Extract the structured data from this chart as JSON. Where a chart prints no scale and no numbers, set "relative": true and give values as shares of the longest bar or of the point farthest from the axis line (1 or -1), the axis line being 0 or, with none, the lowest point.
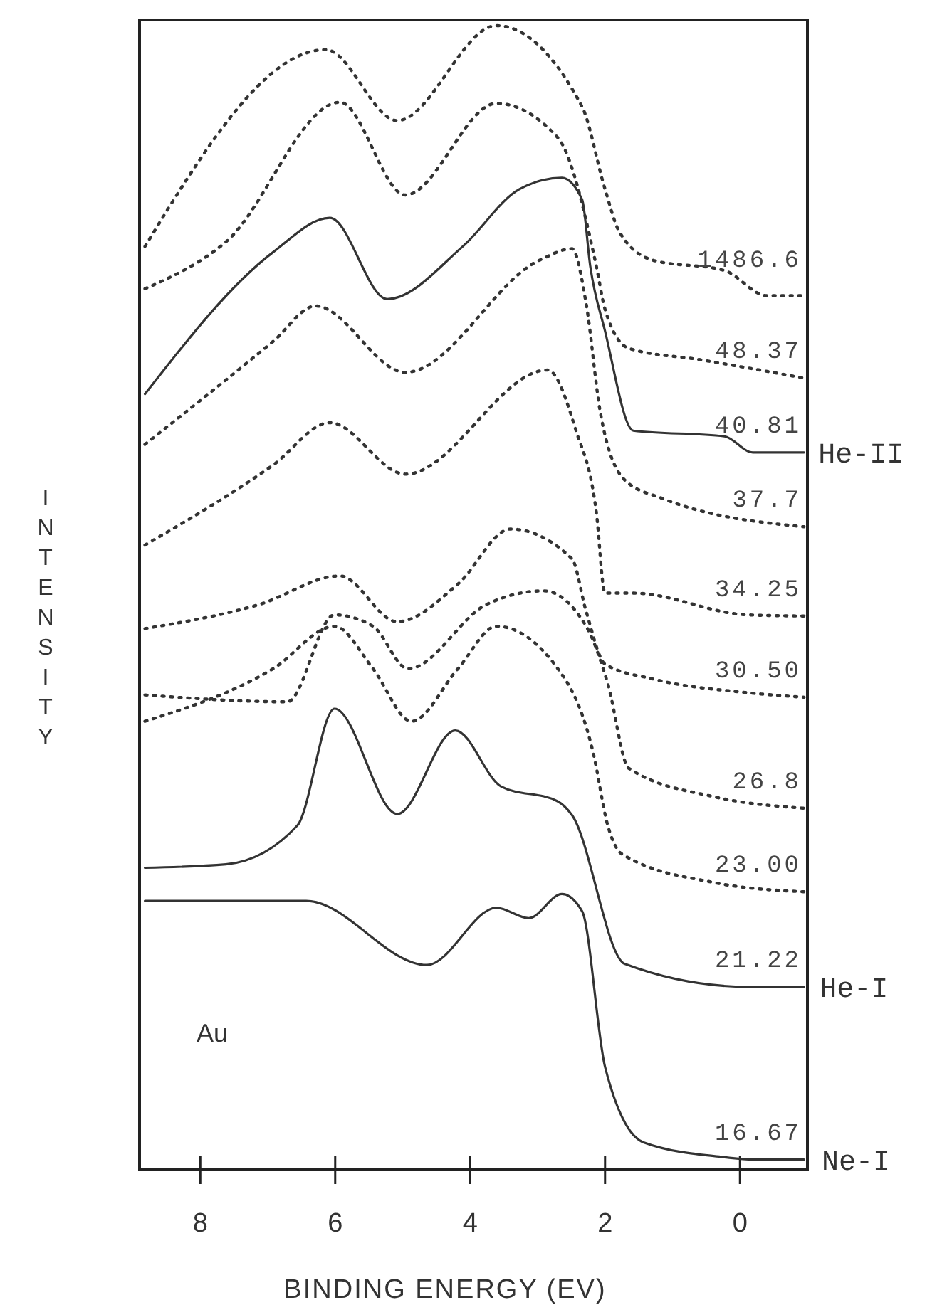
{
  "chart_data": {
    "type": "line",
    "relative": true,
    "xlabel": "BINDING ENERGY (EV)",
    "ylabel": "INTENSITY",
    "xlim": [
      8.9,
      -1.0
    ],
    "xticks": [
      8,
      6,
      4,
      2,
      0
    ],
    "grid": false,
    "legend": false,
    "marker": "none",
    "series": [
      {
        "name": "1486.6",
        "color": "#333333",
        "line_style": "dotted",
        "x": [
          8.82,
          6.14,
          5.08,
          3.61,
          2.34,
          2.0,
          1.79,
          1.29,
          0.23,
          -0.4,
          -0.95
        ],
        "values": [
          0.807,
          0.979,
          0.917,
          1.0,
          0.929,
          0.857,
          0.82,
          0.795,
          0.786,
          0.764,
          0.764
        ]
      },
      {
        "name": "48.37",
        "color": "#333333",
        "line_style": "dotted",
        "x": [
          8.82,
          7.62,
          5.93,
          4.96,
          3.61,
          2.7,
          2.13,
          2.0,
          1.65,
          0.59,
          -0.95
        ],
        "values": [
          0.77,
          0.811,
          0.933,
          0.852,
          0.932,
          0.902,
          0.79,
          0.752,
          0.718,
          0.708,
          0.692
        ]
      },
      {
        "name": "40.81",
        "color": "#333333",
        "line_style": "solid",
        "x": [
          8.82,
          6.92,
          6.08,
          5.23,
          4.11,
          3.27,
          2.64,
          2.34,
          2.22,
          2.0,
          1.58,
          0.23,
          -0.19,
          -0.95
        ],
        "values": [
          0.678,
          0.802,
          0.832,
          0.761,
          0.807,
          0.857,
          0.867,
          0.848,
          0.79,
          0.733,
          0.646,
          0.641,
          0.627,
          0.627
        ]
      },
      {
        "name": "37.7",
        "color": "#333333",
        "line_style": "dotted",
        "x": [
          8.82,
          6.92,
          6.29,
          4.96,
          2.97,
          2.49,
          2.28,
          2.07,
          1.71,
          1.16,
          -0.95
        ],
        "values": [
          0.634,
          0.724,
          0.755,
          0.697,
          0.795,
          0.805,
          0.757,
          0.662,
          0.603,
          0.587,
          0.562
        ]
      },
      {
        "name": "34.25",
        "color": "#333333",
        "line_style": "dotted",
        "x": [
          8.82,
          6.92,
          6.08,
          4.96,
          2.85,
          2.43,
          2.13,
          2.0,
          1.58,
          -0.11,
          -0.95
        ],
        "values": [
          0.546,
          0.616,
          0.653,
          0.608,
          0.699,
          0.646,
          0.575,
          0.504,
          0.504,
          0.485,
          0.484
        ]
      },
      {
        "name": "30.50",
        "color": "#333333",
        "line_style": "dotted",
        "x": [
          8.82,
          7.13,
          5.93,
          5.08,
          4.18,
          3.4,
          2.49,
          2.28,
          2.0,
          1.29,
          -0.11,
          -0.95
        ],
        "values": [
          0.473,
          0.494,
          0.519,
          0.479,
          0.512,
          0.56,
          0.534,
          0.488,
          0.442,
          0.429,
          0.417,
          0.413
        ]
      },
      {
        "name": "26.8",
        "color": "#333333",
        "line_style": "dotted",
        "x": [
          8.82,
          6.71,
          6.01,
          5.44,
          4.92,
          3.76,
          2.91,
          2.28,
          1.96,
          1.65,
          0.38,
          -0.95
        ],
        "values": [
          0.415,
          0.409,
          0.485,
          0.475,
          0.438,
          0.494,
          0.506,
          0.475,
          0.425,
          0.351,
          0.326,
          0.316
        ]
      },
      {
        "name": "23.00",
        "color": "#333333",
        "line_style": "dotted",
        "x": [
          8.82,
          6.92,
          6.01,
          5.44,
          4.87,
          4.18,
          3.61,
          2.7,
          2.17,
          1.96,
          1.75,
          0.38,
          -0.95
        ],
        "values": [
          0.392,
          0.438,
          0.475,
          0.438,
          0.392,
          0.438,
          0.475,
          0.438,
          0.363,
          0.301,
          0.276,
          0.251,
          0.243
        ]
      },
      {
        "name": "21.22",
        "color": "#333333",
        "line_style": "solid",
        "x": [
          8.82,
          7.62,
          6.56,
          6.01,
          5.08,
          4.22,
          3.54,
          2.7,
          2.49,
          1.71,
          -0.11,
          -0.95
        ],
        "values": [
          0.264,
          0.267,
          0.301,
          0.403,
          0.311,
          0.384,
          0.335,
          0.322,
          0.31,
          0.18,
          0.16,
          0.16
        ]
      },
      {
        "name": "16.67",
        "color": "#333333",
        "line_style": "solid",
        "x": [
          8.82,
          6.43,
          4.64,
          3.61,
          3.13,
          2.64,
          2.34,
          2.0,
          1.43,
          0.23,
          -0.19,
          -0.95
        ],
        "values": [
          0.235,
          0.235,
          0.179,
          0.229,
          0.22,
          0.241,
          0.226,
          0.09,
          0.024,
          0.011,
          0.009,
          0.009
        ]
      }
    ],
    "annotations": [
      "Au",
      {
        "text": "He-II",
        "x": -0.95,
        "y": 0.627
      },
      {
        "text": "He-I",
        "x": -0.97,
        "y": 0.16
      },
      {
        "text": "Ne-I",
        "x": -1.0,
        "y": 0.009
      }
    ]
  }
}
